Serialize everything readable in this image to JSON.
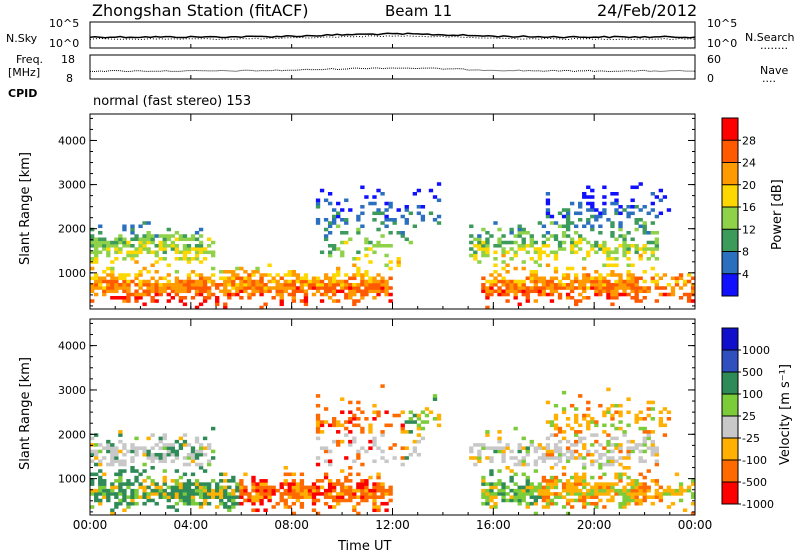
{
  "header": {
    "station": "Zhongshan Station (fitACF)",
    "beam": "Beam 11",
    "date": "24/Feb/2012"
  },
  "sky_panel": {
    "left_label": "N.Sky",
    "left_ticks": [
      "10^5",
      "10^0"
    ],
    "right_label": "N.Search",
    "right_ticks": [
      "10^5",
      "10^0"
    ],
    "right_key": "........"
  },
  "freq_panel": {
    "left_label_1": "Freq.",
    "left_label_2": "[MHz]",
    "left_ticks": [
      "18",
      "8"
    ],
    "right_label": "Nave",
    "right_ticks": [
      "60",
      "0"
    ],
    "right_key": "...."
  },
  "cpid": {
    "label": "CPID",
    "value": "normal (fast stereo) 153"
  },
  "chart_data": [
    {
      "type": "heatmap",
      "name": "power",
      "ylabel": "Slant Range [km]",
      "yticks": [
        "4000",
        "3000",
        "2000",
        "1000"
      ],
      "ytick_values": [
        4000,
        3000,
        2000,
        1000
      ],
      "ylim": [
        180,
        4600
      ],
      "xlim": [
        0,
        24
      ],
      "colorbar": {
        "label": "Power [dB]",
        "ticks": [
          "28",
          "24",
          "20",
          "16",
          "12",
          "8",
          "4"
        ],
        "colors": [
          "#ff0000",
          "#ff5a00",
          "#ff9a00",
          "#ffd700",
          "#8fd24a",
          "#3c9a5a",
          "#2b6fbf",
          "#1010ff"
        ]
      }
    },
    {
      "type": "heatmap",
      "name": "velocity",
      "ylabel": "Slant Range [km]",
      "yticks": [
        "4000",
        "3000",
        "2000",
        "1000"
      ],
      "ytick_values": [
        4000,
        3000,
        2000,
        1000
      ],
      "ylim": [
        180,
        4600
      ],
      "xlim": [
        0,
        24
      ],
      "xticks": [
        "00:00",
        "04:00",
        "08:00",
        "12:00",
        "16:00",
        "20:00",
        "00:00"
      ],
      "xtick_values": [
        0,
        4,
        8,
        12,
        16,
        20,
        24
      ],
      "xlabel": "Time UT",
      "colorbar": {
        "label": "Velocity [m s⁻¹]",
        "ticks": [
          "1000",
          "500",
          "100",
          "25",
          "-25",
          "-100",
          "-500",
          "-1000"
        ],
        "colors": [
          "#1010cc",
          "#3050c0",
          "#2e8b57",
          "#7ccc3a",
          "#c8c8c8",
          "#ffb000",
          "#ff6a00",
          "#ff0000"
        ]
      }
    }
  ]
}
